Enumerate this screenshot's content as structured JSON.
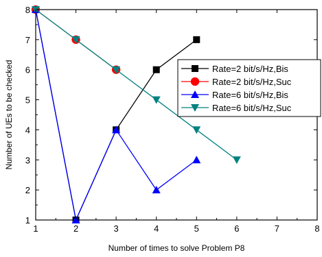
{
  "chart_data": {
    "type": "line",
    "title": "",
    "xlabel": "Number of times to solve Problem P8",
    "ylabel": "Number of UEs to be checked",
    "xlim": [
      1,
      8
    ],
    "ylim": [
      1,
      8
    ],
    "xticks": [
      "1",
      "2",
      "3",
      "4",
      "5",
      "6",
      "7",
      "8"
    ],
    "yticks": [
      "1",
      "2",
      "3",
      "4",
      "5",
      "6",
      "7",
      "8"
    ],
    "grid": false,
    "legend_position": "right",
    "series": [
      {
        "name": "Rate=2 bit/s/Hz,Bis",
        "color": "#000000",
        "marker": "square",
        "x": [
          1,
          2,
          3,
          4,
          5
        ],
        "y": [
          8,
          1,
          4,
          6,
          7
        ]
      },
      {
        "name": "Rate=2 bit/s/Hz,Suc",
        "color": "#ff0000",
        "marker": "circle",
        "x": [
          1,
          2,
          3
        ],
        "y": [
          8,
          7,
          6
        ]
      },
      {
        "name": "Rate=6 bit/s/Hz,Bis",
        "color": "#0000ff",
        "marker": "triangle-up",
        "x": [
          1,
          2,
          3,
          4,
          5
        ],
        "y": [
          8,
          1,
          4,
          2,
          3
        ]
      },
      {
        "name": "Rate=6 bit/s/Hz,Suc",
        "color": "#008080",
        "marker": "triangle-down",
        "x": [
          1,
          2,
          3,
          4,
          5,
          6
        ],
        "y": [
          8,
          7,
          6,
          5,
          4,
          3
        ]
      }
    ]
  }
}
